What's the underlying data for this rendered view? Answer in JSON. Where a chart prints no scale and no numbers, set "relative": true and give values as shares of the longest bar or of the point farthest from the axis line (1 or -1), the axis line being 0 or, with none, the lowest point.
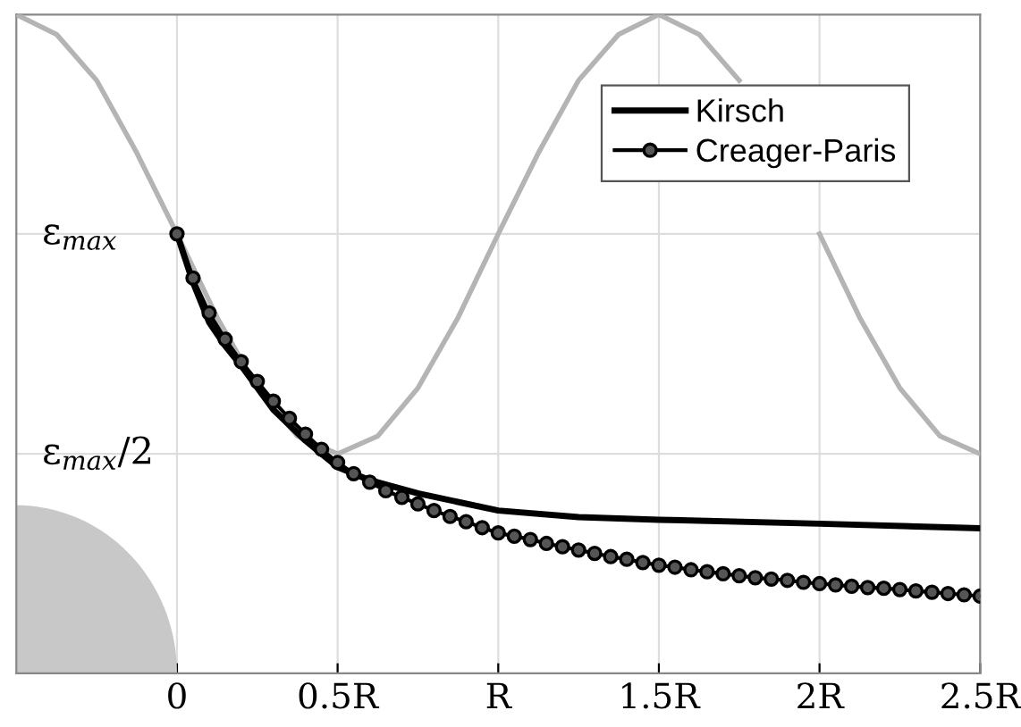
{
  "chart_data": {
    "type": "line",
    "relative": true,
    "series": [
      {
        "color": "#b4b4b4",
        "marker": "none",
        "x": [
          -0.5,
          -0.375,
          -0.25,
          -0.125,
          0,
          0.125,
          0.25,
          0.375,
          0.5,
          0.625,
          0.75,
          0.875,
          1,
          1.125,
          1.25,
          1.375,
          1.5,
          1.625,
          1.75,
          1.875,
          2,
          2.125,
          2.25,
          2.375,
          2.5
        ],
        "values": [
          1,
          0.97,
          0.9,
          0.79,
          0.667,
          0.54,
          0.433,
          0.36,
          0.333,
          0.36,
          0.433,
          0.54,
          0.667,
          0.79,
          0.9,
          0.97,
          1,
          0.97,
          0.9,
          null,
          0.667,
          0.54,
          0.433,
          0.36,
          0.333
        ]
      },
      {
        "name": "Kirsch",
        "color": "#000000",
        "marker": "none",
        "x": [
          0,
          0.05,
          0.1,
          0.15,
          0.2,
          0.3,
          0.4,
          0.5,
          0.6,
          0.75,
          1,
          1.25,
          1.5,
          2,
          2.5
        ],
        "values": [
          0.667,
          0.593,
          0.533,
          0.497,
          0.467,
          0.4,
          0.353,
          0.313,
          0.293,
          0.273,
          0.247,
          0.237,
          0.233,
          0.227,
          0.22
        ]
      },
      {
        "name": "Creager-Paris",
        "color": "#000000",
        "marker": "circle",
        "x": [
          0,
          0.05,
          0.1,
          0.15,
          0.2,
          0.25,
          0.3,
          0.35,
          0.4,
          0.45,
          0.5,
          0.55,
          0.6,
          0.65,
          0.7,
          0.75,
          0.8,
          0.85,
          0.9,
          0.95,
          1,
          1.05,
          1.1,
          1.15,
          1.2,
          1.25,
          1.3,
          1.35,
          1.4,
          1.45,
          1.5,
          1.55,
          1.6,
          1.65,
          1.7,
          1.75,
          1.8,
          1.85,
          1.9,
          1.95,
          2,
          2.05,
          2.1,
          2.15,
          2.2,
          2.25,
          2.3,
          2.35,
          2.4,
          2.45,
          2.5
        ],
        "values": [
          0.667,
          0.6,
          0.547,
          0.507,
          0.473,
          0.443,
          0.413,
          0.387,
          0.363,
          0.34,
          0.32,
          0.303,
          0.29,
          0.277,
          0.267,
          0.257,
          0.247,
          0.238,
          0.23,
          0.221,
          0.213,
          0.208,
          0.203,
          0.197,
          0.192,
          0.187,
          0.182,
          0.177,
          0.173,
          0.168,
          0.164,
          0.161,
          0.157,
          0.154,
          0.151,
          0.148,
          0.145,
          0.143,
          0.141,
          0.138,
          0.136,
          0.134,
          0.132,
          0.13,
          0.129,
          0.127,
          0.125,
          0.123,
          0.121,
          0.119,
          0.117
        ]
      }
    ],
    "xlim": [
      -0.5,
      2.5
    ],
    "xticks": [
      0,
      {
        "value": 0.5,
        "label": "0.5R"
      },
      {
        "value": 1,
        "label": "R"
      },
      {
        "value": 1.5,
        "label": "1.5R"
      },
      {
        "value": 2,
        "label": "2R"
      },
      {
        "value": 2.5,
        "label": "2.5R"
      }
    ],
    "ref_lines": [
      {
        "axis": "y",
        "value": 0.667,
        "label": "ε$_{max}$",
        "color": "#dddddd"
      },
      {
        "axis": "y",
        "value": 0.333,
        "label": "ε$_{max}$/2",
        "color": "#dddddd"
      }
    ],
    "grid": "x",
    "legend": "top right"
  }
}
